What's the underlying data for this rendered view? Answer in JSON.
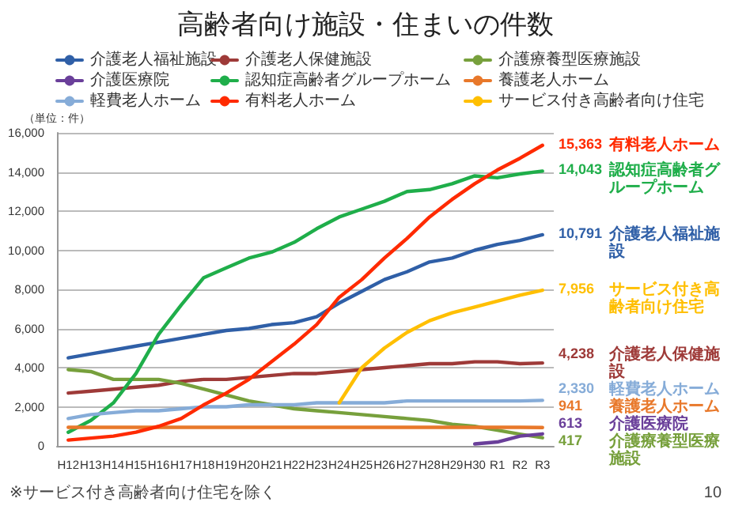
{
  "chart_data": {
    "type": "line",
    "title": "高齢者向け施設・住まいの件数",
    "ylabel": "（単位：件）",
    "categories": [
      "H12",
      "H13",
      "H14",
      "H15",
      "H16",
      "H17",
      "H18",
      "H19",
      "H20",
      "H21",
      "H22",
      "H23",
      "H24",
      "H25",
      "H26",
      "H27",
      "H28",
      "H29",
      "H30",
      "R1",
      "R2",
      "R3"
    ],
    "series": [
      {
        "name": "介護老人福祉施設",
        "color": "#2f5fa7",
        "values": [
          4500,
          4700,
          4900,
          5100,
          5300,
          5500,
          5700,
          5900,
          6000,
          6200,
          6300,
          6600,
          7300,
          7900,
          8500,
          8900,
          9400,
          9600,
          10000,
          10300,
          10500,
          10791
        ],
        "value_labels": [
          null,
          null,
          null,
          null,
          null,
          null,
          null,
          null,
          null,
          null,
          null,
          null,
          null,
          null,
          null,
          null,
          null,
          null,
          null,
          null,
          null,
          "10,791"
        ]
      },
      {
        "name": "介護老人保健施設",
        "color": "#9e3a38",
        "values": [
          2700,
          2800,
          2900,
          3000,
          3100,
          3300,
          3400,
          3400,
          3500,
          3600,
          3700,
          3700,
          3800,
          3900,
          4000,
          4100,
          4200,
          4200,
          4300,
          4300,
          4200,
          4238
        ],
        "value_labels": [
          null,
          null,
          null,
          null,
          null,
          null,
          null,
          null,
          null,
          null,
          null,
          null,
          null,
          null,
          null,
          null,
          null,
          null,
          null,
          null,
          null,
          "4,238"
        ]
      },
      {
        "name": "介護療養型医療施設",
        "color": "#77a03c",
        "values": [
          3900,
          3800,
          3400,
          3400,
          3400,
          3200,
          2900,
          2600,
          2300,
          2100,
          1900,
          1800,
          1700,
          1600,
          1500,
          1400,
          1300,
          1100,
          1000,
          800,
          600,
          417
        ],
        "value_labels": [
          null,
          null,
          null,
          null,
          null,
          null,
          null,
          null,
          null,
          null,
          null,
          null,
          null,
          null,
          null,
          null,
          null,
          null,
          null,
          null,
          null,
          "417"
        ]
      },
      {
        "name": "介護医療院",
        "color": "#6a3f9a",
        "values": [
          null,
          null,
          null,
          null,
          null,
          null,
          null,
          null,
          null,
          null,
          null,
          null,
          null,
          null,
          null,
          null,
          null,
          null,
          100,
          200,
          500,
          613
        ],
        "value_labels": [
          null,
          null,
          null,
          null,
          null,
          null,
          null,
          null,
          null,
          null,
          null,
          null,
          null,
          null,
          null,
          null,
          null,
          null,
          null,
          null,
          null,
          "613"
        ]
      },
      {
        "name": "認知症高齢者グループホーム",
        "color": "#1fae4a",
        "values": [
          700,
          1300,
          2200,
          3700,
          5700,
          7200,
          8600,
          9100,
          9600,
          9900,
          10400,
          11100,
          11700,
          12100,
          12500,
          13000,
          13100,
          13400,
          13800,
          13700,
          13900,
          14043
        ],
        "value_labels": [
          null,
          null,
          null,
          null,
          null,
          null,
          null,
          null,
          null,
          null,
          null,
          null,
          null,
          null,
          null,
          null,
          null,
          null,
          null,
          null,
          null,
          "14,043"
        ]
      },
      {
        "name": "養護老人ホーム",
        "color": "#e8782a",
        "values": [
          950,
          950,
          950,
          950,
          950,
          950,
          950,
          950,
          950,
          950,
          950,
          950,
          950,
          950,
          950,
          950,
          950,
          950,
          950,
          950,
          950,
          941
        ],
        "value_labels": [
          null,
          null,
          null,
          null,
          null,
          null,
          null,
          null,
          null,
          null,
          null,
          null,
          null,
          null,
          null,
          null,
          null,
          null,
          null,
          null,
          null,
          "941"
        ]
      },
      {
        "name": "軽費老人ホーム",
        "color": "#86acd8",
        "values": [
          1400,
          1600,
          1700,
          1800,
          1800,
          1900,
          2000,
          2000,
          2100,
          2100,
          2100,
          2200,
          2200,
          2200,
          2200,
          2300,
          2300,
          2300,
          2300,
          2300,
          2300,
          2330
        ],
        "value_labels": [
          null,
          null,
          null,
          null,
          null,
          null,
          null,
          null,
          null,
          null,
          null,
          null,
          null,
          null,
          null,
          null,
          null,
          null,
          null,
          null,
          null,
          "2,330"
        ]
      },
      {
        "name": "有料老人ホーム",
        "color": "#ff2a00",
        "values": [
          300,
          400,
          500,
          700,
          1000,
          1400,
          2100,
          2700,
          3400,
          4300,
          5200,
          6200,
          7600,
          8500,
          9600,
          10600,
          11700,
          12600,
          13400,
          14100,
          14700,
          15363
        ],
        "value_labels": [
          null,
          null,
          null,
          null,
          null,
          null,
          null,
          null,
          null,
          null,
          null,
          null,
          null,
          null,
          null,
          null,
          null,
          null,
          null,
          null,
          null,
          "15,363"
        ]
      },
      {
        "name": "サービス付き高齢者向け住宅",
        "color": "#ffbf00",
        "values": [
          null,
          null,
          null,
          null,
          null,
          null,
          null,
          null,
          null,
          null,
          null,
          null,
          2200,
          4000,
          5000,
          5800,
          6400,
          6800,
          7100,
          7400,
          7700,
          7956
        ],
        "value_labels": [
          null,
          null,
          null,
          null,
          null,
          null,
          null,
          null,
          null,
          null,
          null,
          null,
          null,
          null,
          null,
          null,
          null,
          null,
          null,
          null,
          null,
          "7,956"
        ]
      }
    ],
    "ylim": [
      0,
      16000
    ],
    "yticks": [
      0,
      {
        "value": 2000,
        "label": "2,000"
      },
      {
        "value": 4000,
        "label": "4,000"
      },
      {
        "value": 6000,
        "label": "6,000"
      },
      {
        "value": 8000,
        "label": "8,000"
      },
      {
        "value": 10000,
        "label": "10,000"
      },
      {
        "value": 12000,
        "label": "12,000"
      },
      {
        "value": 14000,
        "label": "14,000"
      },
      {
        "value": 16000,
        "label": "16,000"
      }
    ],
    "grid": "y",
    "legend": "top",
    "marker": "none",
    "line_style": "solid",
    "annotations": [
      "有料老人ホーム",
      "認知症高齢者グループホーム",
      "介護老人福祉施設",
      "サービス付き高齢者向け住宅",
      "介護老人保健施設",
      "軽費老人ホーム",
      "養護老人ホーム",
      "介護医療院",
      "介護療養型医療施設",
      "※サービス付き高齢者向け住宅を除く",
      "10"
    ]
  }
}
